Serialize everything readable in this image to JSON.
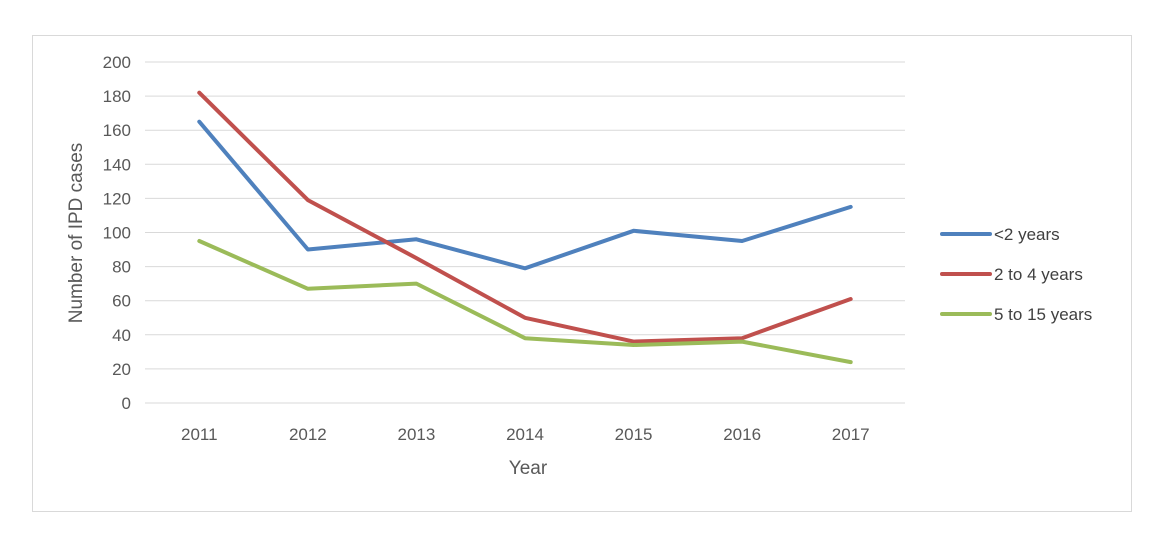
{
  "chart_data": {
    "type": "line",
    "title": "",
    "xlabel": "Year",
    "ylabel": "Number of IPD cases",
    "x": [
      "2011",
      "2012",
      "2013",
      "2014",
      "2015",
      "2016",
      "2017"
    ],
    "ylim": [
      0,
      200
    ],
    "yticks": [
      0,
      20,
      40,
      60,
      80,
      100,
      120,
      140,
      160,
      180,
      200
    ],
    "grid": true,
    "legend": "right",
    "series": [
      {
        "name": "<2 years",
        "color": "#4f81bd",
        "values": [
          165,
          90,
          96,
          79,
          101,
          95,
          115
        ]
      },
      {
        "name": "2 to 4 years",
        "color": "#c0504d",
        "values": [
          182,
          119,
          85,
          50,
          36,
          38,
          61
        ]
      },
      {
        "name": "5 to 15 years",
        "color": "#9bbb59",
        "values": [
          95,
          67,
          70,
          38,
          34,
          36,
          24
        ]
      }
    ]
  }
}
